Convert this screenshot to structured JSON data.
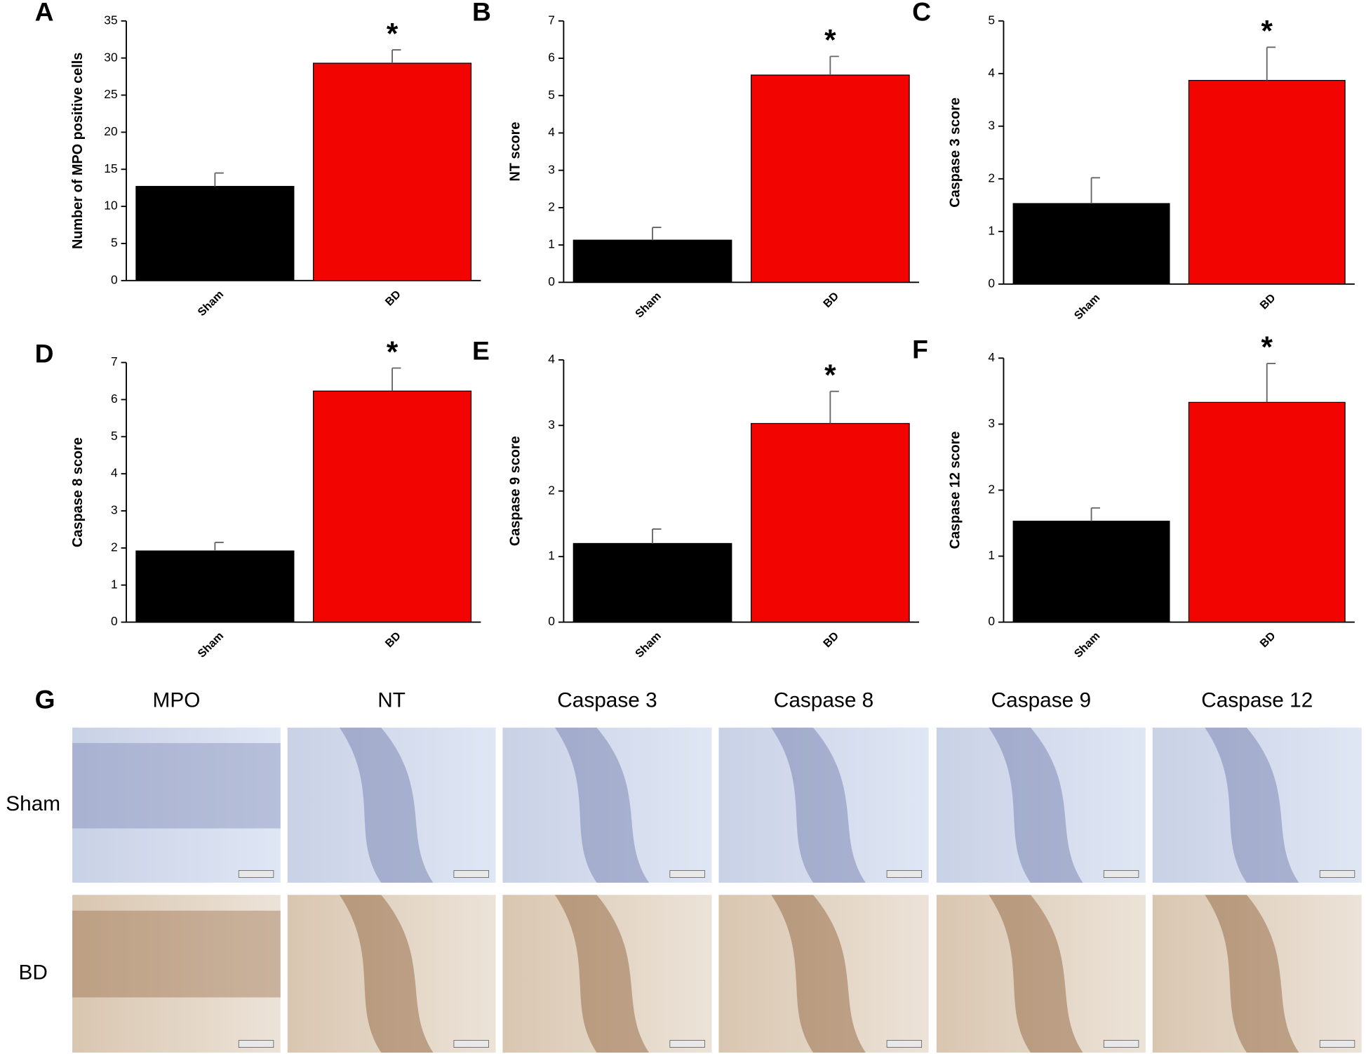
{
  "chart_data": [
    {
      "type": "bar",
      "panel": "A",
      "ylabel": "Number of MPO positive cells",
      "categories": [
        "Sham",
        "BD"
      ],
      "values": [
        12.7,
        29.3
      ],
      "errors": [
        1.8,
        1.8
      ],
      "colors": [
        "#000000",
        "#f20500"
      ],
      "annotations": [
        null,
        "*"
      ],
      "ylim": [
        0,
        35
      ],
      "yticks": [
        0,
        5,
        10,
        15,
        20,
        25,
        30,
        35
      ]
    },
    {
      "type": "bar",
      "panel": "B",
      "ylabel": "NT score",
      "categories": [
        "Sham",
        "BD"
      ],
      "values": [
        1.13,
        5.55
      ],
      "errors": [
        0.34,
        0.5
      ],
      "colors": [
        "#000000",
        "#f20500"
      ],
      "annotations": [
        null,
        "*"
      ],
      "ylim": [
        0,
        7
      ],
      "yticks": [
        0,
        1,
        2,
        3,
        4,
        5,
        6,
        7
      ]
    },
    {
      "type": "bar",
      "panel": "C",
      "ylabel": "Caspase 3 score",
      "categories": [
        "Sham",
        "BD"
      ],
      "values": [
        1.53,
        3.87
      ],
      "errors": [
        0.49,
        0.63
      ],
      "colors": [
        "#000000",
        "#f20500"
      ],
      "annotations": [
        null,
        "*"
      ],
      "ylim": [
        0,
        5
      ],
      "yticks": [
        0,
        1,
        2,
        3,
        4,
        5
      ]
    },
    {
      "type": "bar",
      "panel": "D",
      "ylabel": "Caspase 8 score",
      "categories": [
        "Sham",
        "BD"
      ],
      "values": [
        1.92,
        6.23
      ],
      "errors": [
        0.23,
        0.62
      ],
      "colors": [
        "#000000",
        "#f20500"
      ],
      "annotations": [
        null,
        "*"
      ],
      "ylim": [
        0,
        7
      ],
      "yticks": [
        0,
        1,
        2,
        3,
        4,
        5,
        6,
        7
      ]
    },
    {
      "type": "bar",
      "panel": "E",
      "ylabel": "Caspase 9 score",
      "categories": [
        "Sham",
        "BD"
      ],
      "values": [
        1.2,
        3.03
      ],
      "errors": [
        0.22,
        0.49
      ],
      "colors": [
        "#000000",
        "#f20500"
      ],
      "annotations": [
        null,
        "*"
      ],
      "ylim": [
        0,
        4
      ],
      "yticks": [
        0,
        1,
        2,
        3,
        4
      ]
    },
    {
      "type": "bar",
      "panel": "F",
      "ylabel": "Caspase 12 score",
      "categories": [
        "Sham",
        "BD"
      ],
      "values": [
        1.53,
        3.33
      ],
      "errors": [
        0.2,
        0.59
      ],
      "colors": [
        "#000000",
        "#f20500"
      ],
      "annotations": [
        null,
        "*"
      ],
      "ylim": [
        0,
        4
      ],
      "yticks": [
        0,
        1,
        2,
        3,
        4
      ]
    }
  ],
  "panel_g": {
    "label": "G",
    "columns": [
      "MPO",
      "NT",
      "Caspase 3",
      "Caspase 8",
      "Caspase 9",
      "Caspase 12"
    ],
    "rows": [
      "Sham",
      "BD"
    ]
  }
}
